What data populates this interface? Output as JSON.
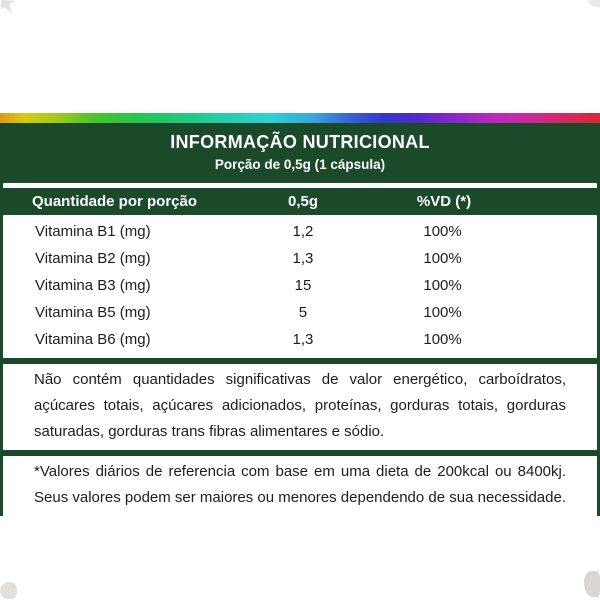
{
  "colors": {
    "brand_green": "#1b4a2b"
  },
  "header": {
    "title": "INFORMAÇÃO NUTRICIONAL",
    "subtitle": "Porção de 0,5g (1 cápsula)"
  },
  "table": {
    "columns": [
      "Quantidade por porção",
      "0,5g",
      "%VD (*)"
    ],
    "rows": [
      {
        "name": "Vitamina B1 (mg)",
        "amount": "1,2",
        "dv": "100%"
      },
      {
        "name": "Vitamina B2 (mg)",
        "amount": "1,3",
        "dv": "100%"
      },
      {
        "name": "Vitamina B3 (mg)",
        "amount": "15",
        "dv": "100%"
      },
      {
        "name": "Vitamina B5 (mg)",
        "amount": "5",
        "dv": "100%"
      },
      {
        "name": "Vitamina B6 (mg)",
        "amount": "1,3",
        "dv": "100%"
      }
    ]
  },
  "notes": {
    "no_significant": "Não contém quantidades significativas de valor energético, carboídratos, açúcares totais, açúcares adicionados, proteínas, gorduras totais, gorduras saturadas, gorduras trans fibras alimentares e sódio.",
    "daily_values": "*Valores diários de referencia com base em uma dieta de 200kcal ou 8400kj. Seus valores podem ser maiores ou menores dependendo de sua necessidade."
  }
}
